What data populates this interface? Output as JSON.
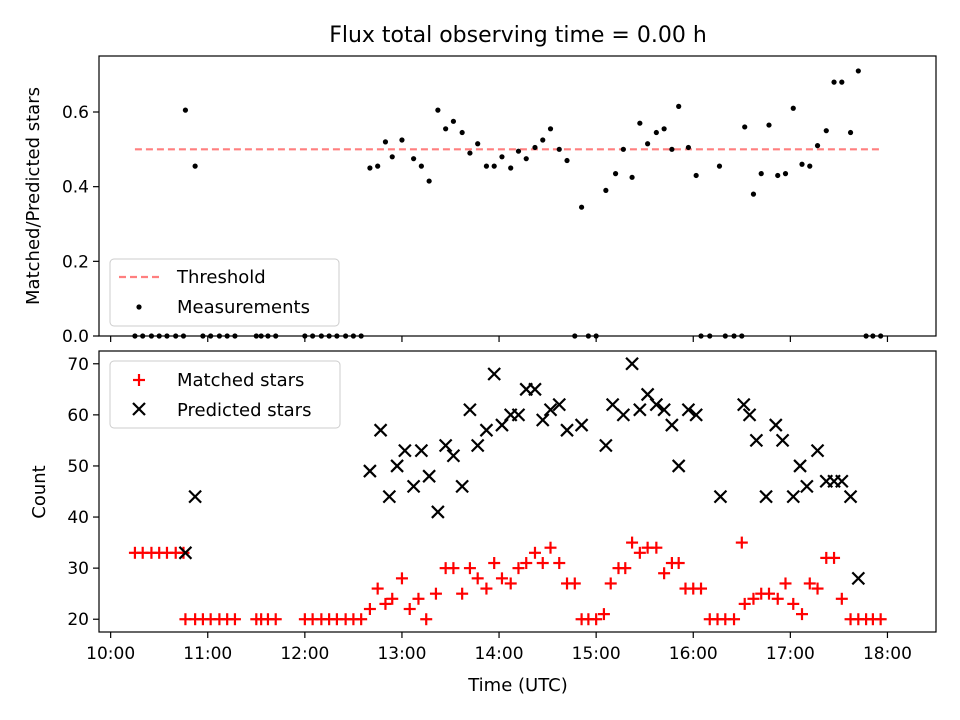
{
  "chart_data": [
    {
      "type": "scatter",
      "title": "Flux total observing time = 0.00 h",
      "xlabel": "",
      "ylabel": "Matched/Predicted stars",
      "xlim": [
        9.88,
        18.5
      ],
      "ylim": [
        0.0,
        0.75
      ],
      "yticks": [
        0.0,
        0.2,
        0.4,
        0.6
      ],
      "ytick_labels": [
        "0.0",
        "0.2",
        "0.4",
        "0.6"
      ],
      "legend_position": "lower-left",
      "series": [
        {
          "name": "Threshold",
          "kind": "line",
          "style": "dashed",
          "color": "#ff7f7f",
          "x": [
            10.25,
            17.92
          ],
          "y": [
            0.5,
            0.5
          ]
        },
        {
          "name": "Measurements",
          "kind": "dots",
          "color": "#000000",
          "x": [
            10.25,
            10.33,
            10.42,
            10.5,
            10.58,
            10.67,
            10.75,
            10.77,
            10.87,
            10.95,
            11.03,
            11.12,
            11.2,
            11.28,
            11.5,
            11.55,
            11.62,
            11.7,
            12.0,
            12.08,
            12.17,
            12.25,
            12.33,
            12.42,
            12.5,
            12.58,
            12.67,
            12.75,
            12.83,
            12.9,
            13.0,
            13.12,
            13.2,
            13.28,
            13.37,
            13.45,
            13.53,
            13.62,
            13.7,
            13.78,
            13.87,
            13.95,
            14.03,
            14.12,
            14.2,
            14.28,
            14.37,
            14.45,
            14.53,
            14.62,
            14.7,
            14.78,
            14.85,
            14.92,
            15.0,
            15.1,
            15.2,
            15.28,
            15.37,
            15.45,
            15.53,
            15.62,
            15.7,
            15.78,
            15.85,
            15.95,
            16.03,
            16.08,
            16.17,
            16.27,
            16.33,
            16.42,
            16.5,
            16.53,
            16.62,
            16.7,
            16.78,
            16.87,
            16.95,
            17.03,
            17.12,
            17.2,
            17.28,
            17.37,
            17.45,
            17.53,
            17.62,
            17.7,
            17.78,
            17.85,
            17.93
          ],
          "y": [
            0,
            0,
            0,
            0,
            0,
            0,
            0,
            0.605,
            0.455,
            0,
            0,
            0,
            0,
            0,
            0,
            0,
            0,
            0,
            0,
            0,
            0,
            0,
            0,
            0,
            0,
            0,
            0.45,
            0.455,
            0.52,
            0.48,
            0.525,
            0.475,
            0.455,
            0.415,
            0.605,
            0.555,
            0.575,
            0.545,
            0.49,
            0.515,
            0.455,
            0.455,
            0.48,
            0.45,
            0.495,
            0.475,
            0.505,
            0.525,
            0.555,
            0.5,
            0.47,
            0,
            0.345,
            0,
            0,
            0.39,
            0.435,
            0.5,
            0.425,
            0.57,
            0.515,
            0.545,
            0.555,
            0.5,
            0.615,
            0.505,
            0.43,
            0,
            0,
            0.455,
            0,
            0,
            0,
            0.56,
            0.38,
            0.435,
            0.565,
            0.43,
            0.435,
            0.61,
            0.46,
            0.455,
            0.51,
            0.55,
            0.68,
            0.68,
            0.545,
            0.71,
            0,
            0,
            0
          ]
        }
      ]
    },
    {
      "type": "scatter",
      "title": "",
      "xlabel": "Time (UTC)",
      "ylabel": "Count",
      "xlim": [
        9.88,
        18.5
      ],
      "ylim": [
        17.5,
        72.5
      ],
      "yticks": [
        20,
        30,
        40,
        50,
        60,
        70
      ],
      "ytick_labels": [
        "20",
        "30",
        "40",
        "50",
        "60",
        "70"
      ],
      "xticks": [
        10,
        11,
        12,
        13,
        14,
        15,
        16,
        17,
        18
      ],
      "xtick_labels": [
        "10:00",
        "11:00",
        "12:00",
        "13:00",
        "14:00",
        "15:00",
        "16:00",
        "17:00",
        "18:00"
      ],
      "legend_position": "top-left",
      "series": [
        {
          "name": "Matched stars",
          "marker": "plus",
          "color": "#ff0000",
          "x": [
            10.25,
            10.33,
            10.42,
            10.5,
            10.58,
            10.67,
            10.75,
            10.77,
            10.87,
            10.95,
            11.03,
            11.12,
            11.2,
            11.28,
            11.5,
            11.55,
            11.62,
            11.7,
            12.0,
            12.08,
            12.17,
            12.25,
            12.33,
            12.42,
            12.5,
            12.58,
            12.67,
            12.75,
            12.83,
            12.9,
            13.0,
            13.08,
            13.17,
            13.25,
            13.35,
            13.45,
            13.53,
            13.62,
            13.7,
            13.78,
            13.87,
            13.95,
            14.03,
            14.12,
            14.2,
            14.28,
            14.37,
            14.45,
            14.53,
            14.62,
            14.7,
            14.78,
            14.85,
            14.92,
            15.0,
            15.08,
            15.15,
            15.23,
            15.3,
            15.37,
            15.45,
            15.53,
            15.62,
            15.7,
            15.78,
            15.85,
            15.92,
            16.0,
            16.08,
            16.17,
            16.25,
            16.33,
            16.42,
            16.5,
            16.53,
            16.62,
            16.7,
            16.78,
            16.87,
            16.95,
            17.03,
            17.12,
            17.2,
            17.28,
            17.37,
            17.45,
            17.53,
            17.62,
            17.7,
            17.78,
            17.85,
            17.93
          ],
          "y": [
            33,
            33,
            33,
            33,
            33,
            33,
            33,
            20,
            20,
            20,
            20,
            20,
            20,
            20,
            20,
            20,
            20,
            20,
            20,
            20,
            20,
            20,
            20,
            20,
            20,
            20,
            22,
            26,
            23,
            24,
            28,
            22,
            24,
            20,
            25,
            30,
            30,
            25,
            30,
            28,
            26,
            31,
            28,
            27,
            30,
            31,
            33,
            31,
            34,
            31,
            27,
            27,
            20,
            20,
            20,
            21,
            27,
            30,
            30,
            35,
            33,
            34,
            34,
            29,
            31,
            31,
            26,
            26,
            26,
            20,
            20,
            20,
            20,
            35,
            23,
            24,
            25,
            25,
            24,
            27,
            23,
            21,
            27,
            26,
            32,
            32,
            24,
            20,
            20,
            20,
            20,
            20
          ]
        },
        {
          "name": "Predicted stars",
          "marker": "x",
          "color": "#000000",
          "x": [
            10.77,
            10.87,
            12.67,
            12.78,
            12.87,
            12.95,
            13.03,
            13.12,
            13.2,
            13.28,
            13.37,
            13.45,
            13.53,
            13.62,
            13.7,
            13.78,
            13.87,
            13.95,
            14.03,
            14.12,
            14.2,
            14.28,
            14.37,
            14.45,
            14.53,
            14.62,
            14.7,
            14.85,
            15.1,
            15.17,
            15.28,
            15.37,
            15.45,
            15.53,
            15.62,
            15.7,
            15.78,
            15.85,
            15.95,
            16.03,
            16.28,
            16.52,
            16.58,
            16.65,
            16.75,
            16.85,
            16.92,
            17.03,
            17.1,
            17.17,
            17.28,
            17.37,
            17.45,
            17.53,
            17.62,
            17.7
          ],
          "y": [
            33,
            44,
            49,
            57,
            44,
            50,
            53,
            46,
            53,
            48,
            41,
            54,
            52,
            46,
            61,
            54,
            57,
            68,
            58,
            60,
            60,
            65,
            65,
            59,
            61,
            62,
            57,
            58,
            54,
            62,
            60,
            70,
            61,
            64,
            62,
            61,
            58,
            50,
            61,
            60,
            44,
            62,
            60,
            55,
            44,
            58,
            55,
            44,
            50,
            46,
            53,
            47,
            47,
            47,
            44,
            28
          ]
        }
      ]
    }
  ]
}
